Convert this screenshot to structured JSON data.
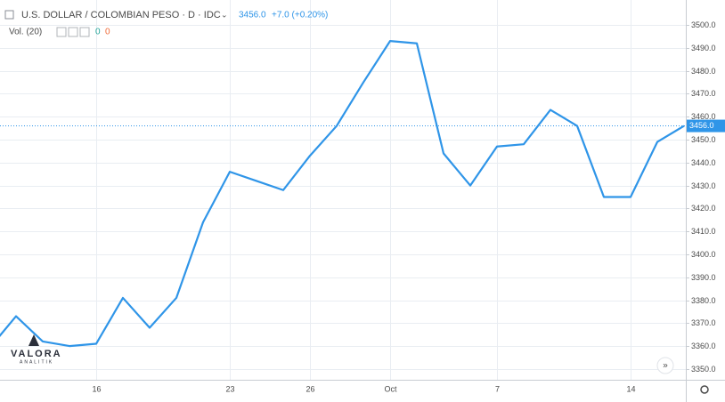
{
  "chart_data": {
    "type": "line",
    "title": "U.S. DOLLAR / COLOMBIAN PESO · D · IDC",
    "last": {
      "value": 3456,
      "label": "3456.0"
    },
    "change": "+7.0 (+0.20%)",
    "volume": {
      "label": "Vol. (20)",
      "values": [
        "0",
        "0"
      ]
    },
    "logo": {
      "name": "VALORA",
      "sub": "ANALITIK"
    },
    "categories": [
      null,
      null,
      null,
      null,
      "16",
      null,
      null,
      null,
      null,
      "23",
      null,
      null,
      "26",
      null,
      null,
      "Oct",
      null,
      null,
      null,
      "7",
      null,
      null,
      null,
      null,
      "14",
      null,
      null
    ],
    "series": [
      {
        "name": "USD/COP",
        "color": "#2f95e8",
        "values": [
          3359,
          3373,
          3362,
          3360,
          3361,
          3381,
          3368,
          3381,
          3414,
          3436,
          3432,
          3428,
          3443,
          3456,
          3475,
          3493,
          3492,
          3444,
          3430,
          3447,
          3448,
          3463,
          3456,
          3425,
          3425,
          3449,
          3456
        ]
      }
    ],
    "ylim": [
      3345.3,
      3510.9
    ],
    "yticks": [
      {
        "value": 3350,
        "label": "3350.0"
      },
      {
        "value": 3360,
        "label": "3360.0"
      },
      {
        "value": 3370,
        "label": "3370.0"
      },
      {
        "value": 3380,
        "label": "3380.0"
      },
      {
        "value": 3390,
        "label": "3390.0"
      },
      {
        "value": 3400,
        "label": "3400.0"
      },
      {
        "value": 3410,
        "label": "3410.0"
      },
      {
        "value": 3420,
        "label": "3420.0"
      },
      {
        "value": 3430,
        "label": "3430.0"
      },
      {
        "value": 3440,
        "label": "3440.0"
      },
      {
        "value": 3450,
        "label": "3450.0"
      },
      {
        "value": 3460,
        "label": "3460.0"
      },
      {
        "value": 3470,
        "label": "3470.0"
      },
      {
        "value": 3480,
        "label": "3480.0"
      },
      {
        "value": 3490,
        "label": "3490.0"
      },
      {
        "value": 3500,
        "label": "3500.0"
      }
    ],
    "grid": true
  }
}
